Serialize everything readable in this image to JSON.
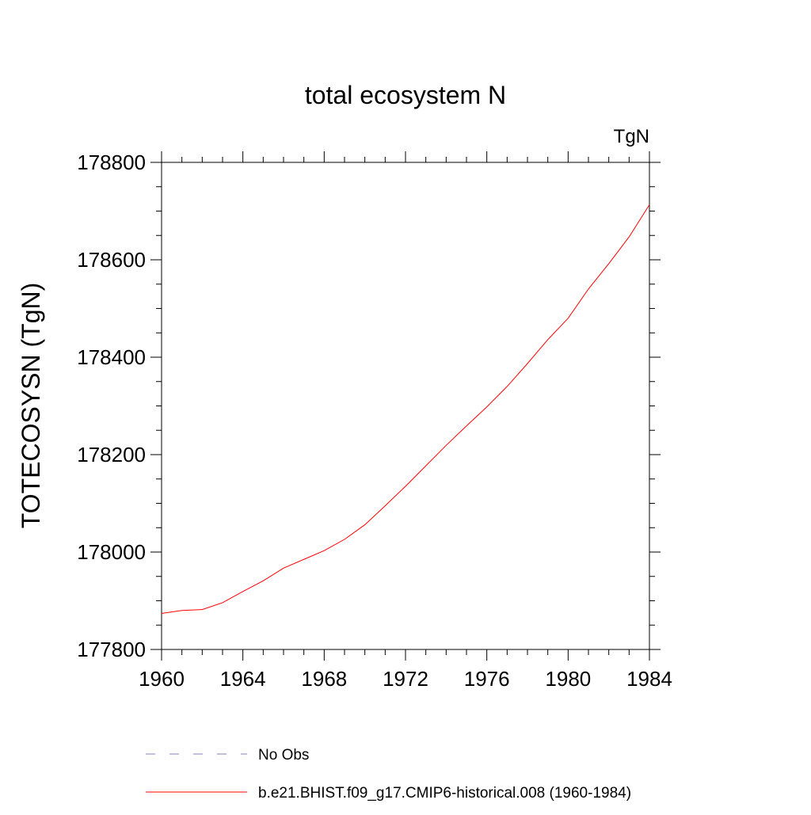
{
  "chart_data": {
    "type": "line",
    "title": "total ecosystem N",
    "units_label": "TgN",
    "ylabel": "TOTECOSYSN  (TgN)",
    "xlabel": "",
    "xlim": [
      1960,
      1984
    ],
    "ylim": [
      177800,
      178800
    ],
    "x_ticks": [
      1960,
      1964,
      1968,
      1972,
      1976,
      1980,
      1984
    ],
    "y_ticks": [
      177800,
      178000,
      178200,
      178400,
      178600,
      178800
    ],
    "x_tick_labels": [
      "1960",
      "1964",
      "1968",
      "1972",
      "1976",
      "1980",
      "1984"
    ],
    "y_tick_labels": [
      "177800",
      "178000",
      "178200",
      "178400",
      "178600",
      "178800"
    ],
    "grid": false,
    "legend_position": "bottom",
    "series": [
      {
        "name": "b.e21.BHIST.f09_g17.CMIP6-historical.008 (1960-1984)",
        "color": "#ff0000",
        "style": "solid",
        "x": [
          1960,
          1961,
          1962,
          1963,
          1964,
          1965,
          1966,
          1967,
          1968,
          1969,
          1970,
          1971,
          1972,
          1973,
          1974,
          1975,
          1976,
          1977,
          1978,
          1979,
          1980,
          1981,
          1982,
          1983,
          1984
        ],
        "y": [
          177874,
          177880,
          177882,
          177896,
          177919,
          177941,
          177967,
          177985,
          178003,
          178026,
          178056,
          178095,
          178135,
          178177,
          178219,
          178259,
          178298,
          178340,
          178387,
          178436,
          178480,
          178540,
          178592,
          178647,
          178713
        ]
      }
    ],
    "legend": [
      {
        "label": "No Obs",
        "color": "#8080c0",
        "style": "dashed"
      },
      {
        "label": "b.e21.BHIST.f09_g17.CMIP6-historical.008 (1960-1984)",
        "color": "#ff0000",
        "style": "solid"
      }
    ]
  }
}
